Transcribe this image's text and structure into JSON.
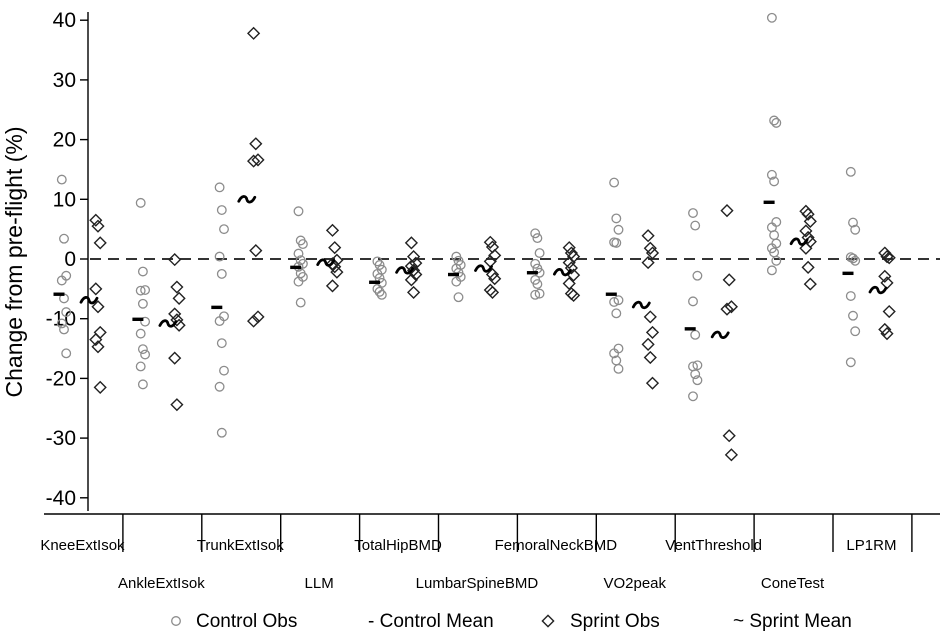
{
  "chart_data": {
    "type": "scatter",
    "ylabel": "Change from pre-flight (%)",
    "ylim": [
      -44,
      44
    ],
    "y_ticks": [
      40,
      30,
      20,
      10,
      0,
      -10,
      -20,
      -30,
      -40
    ],
    "reference_line": 0,
    "grid": false,
    "legend_position": "bottom",
    "legend": [
      {
        "marker": "circle",
        "label": "Control Obs"
      },
      {
        "marker": "dash",
        "label": "- Control Mean"
      },
      {
        "marker": "diamond",
        "label": "Sprint Obs"
      },
      {
        "marker": "tilde",
        "label": "~ Sprint Mean"
      }
    ],
    "categories": [
      "KneeExtIsok",
      "AnkleExtIsok",
      "TrunkExtIsok",
      "LLM",
      "TotalHipBMD",
      "LumbarSpineBMD",
      "FemoralNeckBMD",
      "VO2peak",
      "VentThreshold",
      "ConeTest",
      "LP1RM"
    ],
    "colors": {
      "control": "#8c8c8c",
      "sprint": "#222222",
      "mean": "#000000",
      "refline": "#333333"
    },
    "series": [
      {
        "name": "Control Obs",
        "values": [
          [
            13.3,
            3.4,
            -2.8,
            -3.6,
            -6.6,
            -8.9,
            -10.8,
            -11.8,
            -15.8
          ],
          [
            9.4,
            -2.1,
            -5.2,
            -5.3,
            -7.5,
            -10.5,
            -12.5,
            -15.1,
            -16.0,
            -18.0,
            -21.0
          ],
          [
            12.0,
            8.2,
            5.0,
            0.4,
            -2.5,
            -9.6,
            -10.4,
            -14.1,
            -18.7,
            -21.4,
            -29.1
          ],
          [
            8.0,
            3.1,
            2.5,
            0.9,
            -0.2,
            -0.8,
            -1.3,
            -2.4,
            -3.0,
            -3.8,
            -7.3
          ],
          [
            -0.4,
            -1.0,
            -1.8,
            -2.5,
            -3.2,
            -4.0,
            -5.0,
            -5.5,
            -6.0
          ],
          [
            0.4,
            -0.3,
            -1.0,
            -1.6,
            -2.3,
            -3.0,
            -3.8,
            -6.4
          ],
          [
            4.3,
            3.5,
            1.0,
            -0.8,
            -1.6,
            -2.3,
            -3.5,
            -4.2,
            -5.8,
            -6.0
          ],
          [
            12.8,
            6.8,
            4.9,
            2.8,
            2.7,
            -6.9,
            -7.2,
            -9.1,
            -15.0,
            -15.8,
            -17.0,
            -18.4
          ],
          [
            7.7,
            5.6,
            -2.8,
            -7.1,
            -12.7,
            -17.8,
            -18.0,
            -19.3,
            -20.3,
            -23.0
          ],
          [
            40.4,
            23.2,
            22.8,
            14.1,
            13.0,
            6.2,
            5.3,
            4.0,
            2.6,
            1.8,
            1.1,
            -0.3,
            -1.9
          ],
          [
            14.6,
            6.1,
            4.9,
            0.3,
            0.1,
            -0.3,
            -6.2,
            -9.5,
            -12.1,
            -17.3
          ]
        ]
      },
      {
        "name": "Control Mean",
        "values": [
          -5.9,
          -10.1,
          -8.1,
          -1.4,
          -3.9,
          -2.6,
          -2.3,
          -5.9,
          -11.7,
          9.5,
          -2.4
        ]
      },
      {
        "name": "Sprint Obs",
        "values": [
          [
            6.5,
            5.5,
            2.7,
            -5.0,
            -8.0,
            -12.3,
            -13.5,
            -14.7,
            -21.5
          ],
          [
            -0.1,
            -4.7,
            -6.6,
            -9.2,
            -10.2,
            -11.1,
            -16.6,
            -24.4
          ],
          [
            37.8,
            19.3,
            16.6,
            16.4,
            1.4,
            -9.7,
            -10.4
          ],
          [
            4.8,
            1.9,
            -0.2,
            -0.8,
            -1.3,
            -2.2,
            -4.5
          ],
          [
            2.7,
            0.4,
            -0.7,
            -1.2,
            -1.9,
            -2.6,
            -3.5,
            -5.6
          ],
          [
            2.8,
            2.0,
            0.6,
            -0.4,
            -2.6,
            -3.3,
            -5.2,
            -5.6
          ],
          [
            1.9,
            1.0,
            0.4,
            -0.6,
            -1.5,
            -2.7,
            -4.1,
            -5.8,
            -6.1
          ],
          [
            3.9,
            1.8,
            1.0,
            -0.6,
            -9.7,
            -12.3,
            -14.3,
            -16.5,
            -20.8
          ],
          [
            8.1,
            -3.5,
            -8.0,
            -8.4,
            -29.6,
            -32.8
          ],
          [
            8.0,
            7.5,
            6.3,
            4.7,
            3.6,
            2.9,
            1.8,
            -1.4,
            -4.2
          ],
          [
            1.0,
            0.4,
            0.2,
            -2.9,
            -4.0,
            -8.8,
            -11.8,
            -12.5
          ]
        ]
      },
      {
        "name": "Sprint Mean",
        "values": [
          -6.9,
          -10.8,
          10.0,
          -0.6,
          -1.9,
          -1.6,
          -2.2,
          -7.7,
          -12.7,
          2.9,
          -5.2
        ]
      }
    ]
  }
}
